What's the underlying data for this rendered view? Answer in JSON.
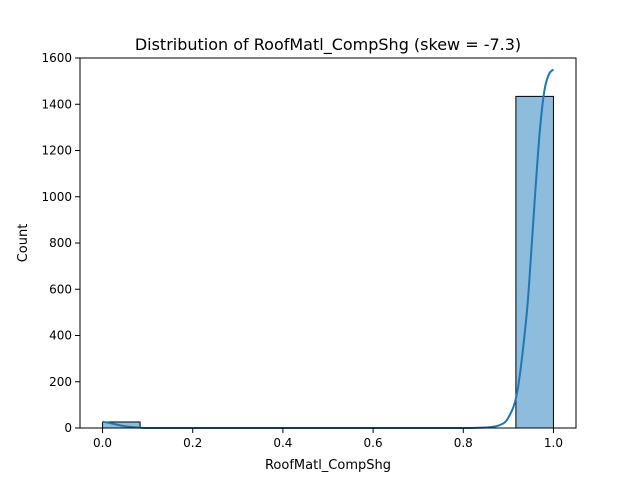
{
  "chart_data": {
    "type": "bar",
    "title": "Distribution of RoofMatl_CompShg (skew = -7.3)",
    "xlabel": "RoofMatl_CompShg",
    "ylabel": "Count",
    "xlim": [
      -0.05,
      1.05
    ],
    "ylim": [
      0,
      1600
    ],
    "xticks": [
      0.0,
      0.2,
      0.4,
      0.6,
      0.8,
      1.0
    ],
    "xtick_labels": [
      "0.0",
      "0.2",
      "0.4",
      "0.6",
      "0.8",
      "1.0"
    ],
    "yticks": [
      0,
      200,
      400,
      600,
      800,
      1000,
      1200,
      1400,
      1600
    ],
    "ytick_labels": [
      "0",
      "200",
      "400",
      "600",
      "800",
      "1000",
      "1200",
      "1400",
      "1600"
    ],
    "grid": false,
    "bins": [
      {
        "x0": 0.0,
        "x1": 0.0833,
        "count": 26
      },
      {
        "x0": 0.9167,
        "x1": 1.0,
        "count": 1434
      }
    ],
    "kde": {
      "x": [
        0.0,
        0.02,
        0.04,
        0.06,
        0.08,
        0.1,
        0.15,
        0.2,
        0.3,
        0.4,
        0.5,
        0.6,
        0.7,
        0.8,
        0.85,
        0.88,
        0.9,
        0.92,
        0.94,
        0.95,
        0.96,
        0.97,
        0.98,
        0.99,
        1.0
      ],
      "y": [
        27,
        20,
        11,
        5,
        2,
        0,
        0,
        0,
        0,
        0,
        0,
        0,
        0,
        0,
        2,
        12,
        45,
        160,
        480,
        740,
        1030,
        1290,
        1460,
        1530,
        1550
      ]
    },
    "colors": {
      "bar_fill": "#8ebcdc",
      "bar_edge": "#000000",
      "kde_line": "#1f77b4"
    }
  }
}
